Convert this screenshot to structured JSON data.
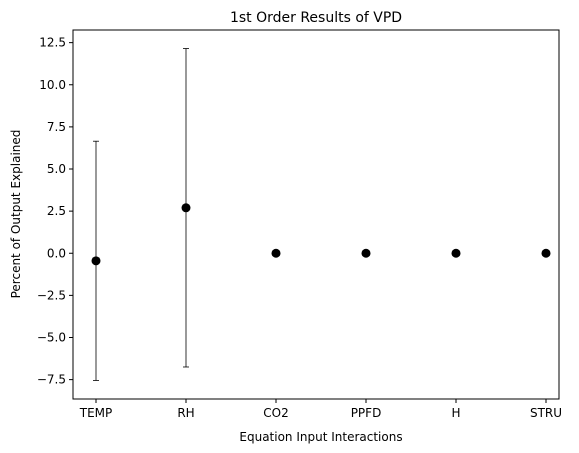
{
  "chart_data": {
    "type": "scatter",
    "title": "1st Order Results of VPD",
    "xlabel": "Equation Input Interactions",
    "ylabel": "Percent of Output Explained",
    "categories": [
      "TEMP",
      "RH",
      "CO2",
      "PPFD",
      "H",
      "STRU"
    ],
    "values": [
      -0.45,
      2.7,
      0.0,
      0.0,
      0.0,
      0.0
    ],
    "error_low": [
      -7.55,
      -6.75,
      0.0,
      0.0,
      0.0,
      0.0
    ],
    "error_high": [
      6.65,
      12.15,
      0.0,
      0.0,
      0.0,
      0.0
    ],
    "ylim": [
      -8.65,
      13.25
    ],
    "yticks": [
      -7.5,
      -5.0,
      -2.5,
      0.0,
      2.5,
      5.0,
      7.5,
      10.0,
      12.5
    ],
    "ytick_labels": [
      "−7.5",
      "−5.0",
      "−2.5",
      "0.0",
      "2.5",
      "5.0",
      "7.5",
      "10.0",
      "12.5"
    ],
    "grid": false,
    "marker_color": "#000000"
  }
}
